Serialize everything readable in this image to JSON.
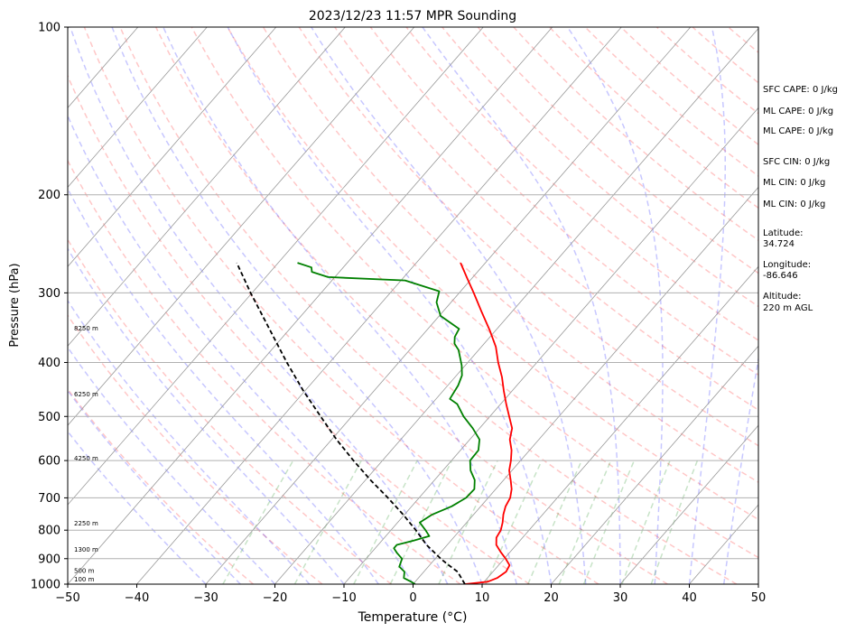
{
  "chart_data": {
    "type": "line",
    "title": "2023/12/23 11:57 MPR Sounding",
    "xlabel": "Temperature (°C)",
    "ylabel": "Pressure (hPa)",
    "xlim": [
      -50,
      50
    ],
    "ylim": [
      1000,
      100
    ],
    "y_scale": "log",
    "skew": "skew-T log-p",
    "grid": true,
    "x_ticks": [
      "−50",
      "−40",
      "−30",
      "−20",
      "−10",
      "0",
      "10",
      "20",
      "30",
      "40",
      "50"
    ],
    "x_tick_values": [
      -50,
      -40,
      -30,
      -20,
      -10,
      0,
      10,
      20,
      30,
      40,
      50
    ],
    "y_ticks": [
      "100",
      "200",
      "300",
      "400",
      "500",
      "600",
      "700",
      "800",
      "900",
      "1000"
    ],
    "y_tick_values": [
      100,
      200,
      300,
      400,
      500,
      600,
      700,
      800,
      900,
      1000
    ],
    "height_labels": [
      {
        "text": "100 m",
        "p": 980
      },
      {
        "text": "500 m",
        "p": 945
      },
      {
        "text": "1300 m",
        "p": 866
      },
      {
        "text": "2250 m",
        "p": 778
      },
      {
        "text": "4250 m",
        "p": 594
      },
      {
        "text": "6250 m",
        "p": 456
      },
      {
        "text": "8250 m",
        "p": 347
      }
    ],
    "series": [
      {
        "label": "temperature",
        "color": "#ff0000",
        "points": [
          [
            1000,
            7.5
          ],
          [
            990,
            10.5
          ],
          [
            975,
            11.4
          ],
          [
            950,
            11.9
          ],
          [
            925,
            11.6
          ],
          [
            900,
            10.2
          ],
          [
            875,
            8.6
          ],
          [
            850,
            7.1
          ],
          [
            825,
            6.2
          ],
          [
            800,
            5.9
          ],
          [
            775,
            5.2
          ],
          [
            750,
            4.3
          ],
          [
            725,
            3.6
          ],
          [
            700,
            3.2
          ],
          [
            675,
            2.3
          ],
          [
            650,
            1.0
          ],
          [
            625,
            -0.4
          ],
          [
            600,
            -1.4
          ],
          [
            575,
            -2.6
          ],
          [
            550,
            -4.2
          ],
          [
            525,
            -5.3
          ],
          [
            500,
            -7.2
          ],
          [
            475,
            -9.2
          ],
          [
            450,
            -11.2
          ],
          [
            425,
            -13.2
          ],
          [
            400,
            -15.6
          ],
          [
            375,
            -17.9
          ],
          [
            350,
            -20.9
          ],
          [
            325,
            -24.3
          ],
          [
            300,
            -27.9
          ],
          [
            283,
            -30.6
          ],
          [
            265,
            -33.6
          ]
        ]
      },
      {
        "label": "dewpoint",
        "color": "#008000",
        "points": [
          [
            1000,
            0.3
          ],
          [
            990,
            -0.6
          ],
          [
            975,
            -2.1
          ],
          [
            950,
            -2.8
          ],
          [
            930,
            -4.2
          ],
          [
            900,
            -4.8
          ],
          [
            880,
            -6.2
          ],
          [
            862,
            -7.3
          ],
          [
            850,
            -7.3
          ],
          [
            835,
            -5.4
          ],
          [
            820,
            -3.7
          ],
          [
            800,
            -5.0
          ],
          [
            775,
            -6.8
          ],
          [
            750,
            -6.0
          ],
          [
            725,
            -4.2
          ],
          [
            700,
            -3.2
          ],
          [
            675,
            -3.1
          ],
          [
            650,
            -4.2
          ],
          [
            625,
            -6.0
          ],
          [
            600,
            -7.3
          ],
          [
            575,
            -7.4
          ],
          [
            550,
            -8.6
          ],
          [
            525,
            -11.0
          ],
          [
            500,
            -13.8
          ],
          [
            475,
            -16.3
          ],
          [
            465,
            -18.0
          ],
          [
            440,
            -18.5
          ],
          [
            422,
            -19.2
          ],
          [
            405,
            -20.5
          ],
          [
            380,
            -22.9
          ],
          [
            370,
            -24.3
          ],
          [
            360,
            -25.1
          ],
          [
            348,
            -25.5
          ],
          [
            340,
            -27.4
          ],
          [
            330,
            -29.8
          ],
          [
            312,
            -32.1
          ],
          [
            298,
            -33.1
          ],
          [
            285,
            -39.4
          ],
          [
            281,
            -51.0
          ],
          [
            275,
            -54.0
          ],
          [
            270,
            -54.6
          ],
          [
            265,
            -57.2
          ]
        ]
      },
      {
        "label": "parcel",
        "color": "#000000",
        "style": "dashed",
        "points": [
          [
            1000,
            7.5
          ],
          [
            950,
            4.9
          ],
          [
            920,
            2.4
          ],
          [
            900,
            0.8
          ],
          [
            850,
            -3.0
          ],
          [
            800,
            -6.4
          ],
          [
            750,
            -10.2
          ],
          [
            700,
            -14.5
          ],
          [
            650,
            -19.3
          ],
          [
            600,
            -24.2
          ],
          [
            550,
            -29.3
          ],
          [
            500,
            -34.5
          ],
          [
            450,
            -40.2
          ],
          [
            400,
            -46.2
          ],
          [
            350,
            -52.7
          ],
          [
            300,
            -60.2
          ],
          [
            265,
            -66.0
          ]
        ]
      }
    ],
    "background_lines": {
      "isotherms": "thin gray solid",
      "dry_adiabats": "red dashed",
      "moist_adiabats": "blue dashed",
      "mixing_ratio": "green dashed"
    }
  },
  "indices": [
    "SFC CAPE: 0 J/kg",
    "ML CAPE: 0 J/kg",
    "ML CAPE: 0 J/kg",
    "SFC CIN: 0 J/kg",
    "ML CIN: 0 J/kg",
    "ML CIN: 0 J/kg"
  ],
  "location": {
    "latitude_label": "Latitude:",
    "latitude": "34.724",
    "longitude_label": "Longitude:",
    "longitude": "-86.646",
    "altitude_label": "Altitude:",
    "altitude": "220 m AGL"
  }
}
